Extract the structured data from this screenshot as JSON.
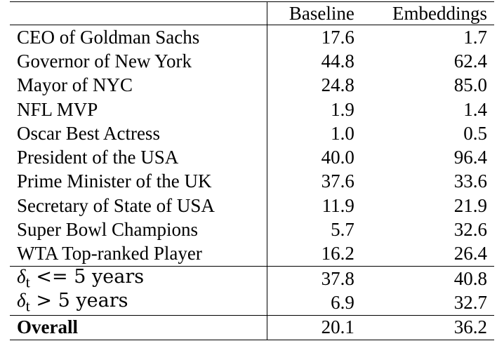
{
  "table": {
    "headers": [
      "",
      "Baseline",
      "Embeddings"
    ],
    "rows": [
      {
        "label": "CEO of Goldman Sachs",
        "baseline": "17.6",
        "embeddings": "1.7"
      },
      {
        "label": "Governor of New York",
        "baseline": "44.8",
        "embeddings": "62.4"
      },
      {
        "label": "Mayor of NYC",
        "baseline": "24.8",
        "embeddings": "85.0"
      },
      {
        "label": "NFL MVP",
        "baseline": "1.9",
        "embeddings": "1.4"
      },
      {
        "label": "Oscar Best Actress",
        "baseline": "1.0",
        "embeddings": "0.5"
      },
      {
        "label": "President of the USA",
        "baseline": "40.0",
        "embeddings": "96.4"
      },
      {
        "label": "Prime Minister of the UK",
        "baseline": "37.6",
        "embeddings": "33.6"
      },
      {
        "label": "Secretary of State of USA",
        "baseline": "11.9",
        "embeddings": "21.9"
      },
      {
        "label": "Super Bowl Champions",
        "baseline": "5.7",
        "embeddings": "32.6"
      },
      {
        "label": "WTA Top-ranked Player",
        "baseline": "16.2",
        "embeddings": "26.4"
      }
    ],
    "delta_rows": [
      {
        "symbol": "δ",
        "subscript": "t",
        "condition": " <= 5 years",
        "baseline": "37.8",
        "embeddings": "40.8"
      },
      {
        "symbol": "δ",
        "subscript": "t",
        "condition": " > 5 years",
        "baseline": "6.9",
        "embeddings": "32.7"
      }
    ],
    "overall": {
      "label": "Overall",
      "baseline": "20.1",
      "embeddings": "36.2"
    }
  }
}
